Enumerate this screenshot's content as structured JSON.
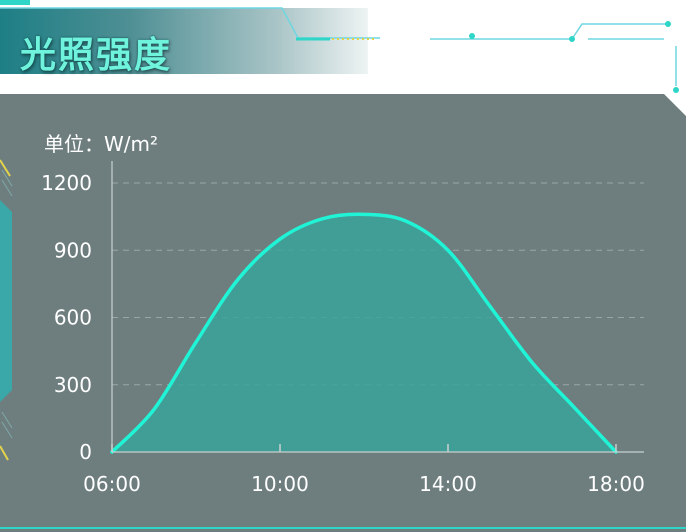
{
  "panel": {
    "title": "光照强度"
  },
  "colors": {
    "line": "#1ff5d6",
    "area": "#3aa39a",
    "panel_bg": "#6e7e7f",
    "grid": "#9aa6a6",
    "axis": "#c7d0d0"
  },
  "chart_data": {
    "type": "area",
    "unit_label": "单位：W/m²",
    "x": [
      "06:00",
      "07:00",
      "08:00",
      "09:00",
      "10:00",
      "11:00",
      "12:00",
      "13:00",
      "14:00",
      "15:00",
      "16:00",
      "17:00",
      "18:00"
    ],
    "values": [
      0,
      190,
      490,
      770,
      950,
      1040,
      1060,
      1030,
      900,
      650,
      400,
      200,
      0
    ],
    "xticks": [
      "06:00",
      "10:00",
      "14:00",
      "18:00"
    ],
    "yticks": [
      0,
      300,
      600,
      900,
      1200
    ],
    "ylim": [
      0,
      1200
    ],
    "grid": true
  }
}
